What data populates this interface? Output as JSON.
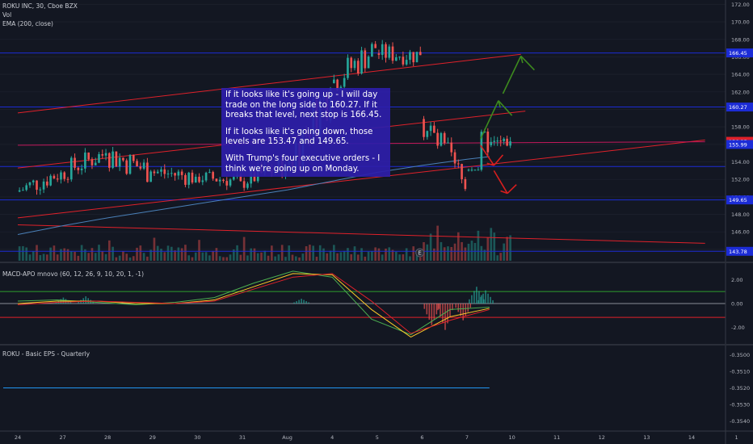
{
  "legend": {
    "symbol": "ROKU INC, 30, Cboe BZX",
    "vol": "Vol",
    "ema": "EMA (200, close)",
    "macd": "MACD-APO mnovo (60, 12, 26, 9, 10, 20, 1, -1)",
    "eps": "ROKU - Basic EPS - Quarterly"
  },
  "note": {
    "p1": "If it looks like it's going up - I will day trade on the long side to 160.27. If it breaks that level, next stop is 166.45.",
    "p2": "If it looks like it's going down, those levels are 153.47 and 149.65.",
    "p3": "With Trump's four executive orders - I think we're going up on Monday."
  },
  "earnings_marker": "E",
  "colors": {
    "background": "#131722",
    "up": "#26a69a",
    "down": "#ef5350",
    "level_line": "#1c2cd6",
    "trend_line": "#e0212a",
    "ema": "#4a80b8",
    "arrow_up": "#3d8a1e",
    "arrow_down": "#d81e1e",
    "note_bg": "#2e1eaa",
    "axis_text": "#b2b5be"
  },
  "chart_data": [
    {
      "type": "candlestick",
      "title": "ROKU INC, 30, Cboe BZX",
      "ylim": [
        142.7,
        172.5
      ],
      "y_ticks": [
        "172.00",
        "170.00",
        "168.00",
        "166.00",
        "164.00",
        "162.00",
        "160.00",
        "158.00",
        "156.00",
        "154.00",
        "152.00",
        "150.00",
        "148.00",
        "146.00",
        "144.00"
      ],
      "x_ticks": [
        "24",
        "27",
        "28",
        "29",
        "30",
        "31",
        "Aug",
        "4",
        "5",
        "6",
        "7",
        "10",
        "11",
        "12",
        "13",
        "14",
        "1"
      ],
      "price_labels": [
        {
          "text": "166.45",
          "value": 166.45,
          "kind": "level"
        },
        {
          "text": "160.27",
          "value": 160.27,
          "kind": "level"
        },
        {
          "text": "156.35",
          "value": 156.35,
          "kind": "last"
        },
        {
          "text": "155.99",
          "value": 155.99,
          "kind": "level"
        },
        {
          "text": "149.65",
          "value": 149.65,
          "kind": "level"
        },
        {
          "text": "143.78",
          "value": 143.78,
          "kind": "level"
        }
      ],
      "horizontal_levels": [
        166.45,
        160.27,
        155.99,
        153.47,
        149.65,
        143.78
      ],
      "trendlines": [
        {
          "name": "upper channel",
          "start": {
            "day": 0,
            "price": 159.6
          },
          "end": {
            "day": 11.2,
            "price": 166.3
          }
        },
        {
          "name": "mid channel",
          "start": {
            "day": 0,
            "price": 153.3
          },
          "end": {
            "day": 11.3,
            "price": 159.8
          }
        },
        {
          "name": "lower channel",
          "start": {
            "day": 0,
            "price": 147.6
          },
          "end": {
            "day": 15.3,
            "price": 156.5
          }
        },
        {
          "name": "lower support",
          "start": {
            "day": 0,
            "price": 146.8
          },
          "end": {
            "day": 15.3,
            "price": 144.7
          }
        },
        {
          "name": "pink line",
          "start": {
            "day": 0,
            "price": 155.9
          },
          "end": {
            "day": 15.3,
            "price": 156.3
          }
        }
      ],
      "arrows": [
        {
          "dir": "up",
          "path": [
            {
              "day": 10.3,
              "price": 156.6
            },
            {
              "day": 10.7,
              "price": 161.0
            },
            {
              "day": 11.0,
              "price": 159.3
            }
          ]
        },
        {
          "dir": "up",
          "path": [
            {
              "day": 10.8,
              "price": 161.8
            },
            {
              "day": 11.2,
              "price": 166.1
            },
            {
              "day": 11.5,
              "price": 164.5
            }
          ]
        },
        {
          "dir": "down",
          "path": [
            {
              "day": 10.3,
              "price": 155.9
            },
            {
              "day": 10.6,
              "price": 153.6
            },
            {
              "day": 10.8,
              "price": 154.8
            }
          ]
        },
        {
          "dir": "down",
          "path": [
            {
              "day": 10.6,
              "price": 153.0
            },
            {
              "day": 10.9,
              "price": 150.4
            },
            {
              "day": 11.1,
              "price": 151.4
            }
          ]
        }
      ],
      "ohlc_days": [
        {
          "label": "24",
          "day": 0,
          "open": 150.6,
          "close": 152.8,
          "low": 149.5,
          "high": 154.0
        },
        {
          "label": "27",
          "day": 1,
          "open": 152.8,
          "close": 155.0,
          "low": 151.3,
          "high": 155.9
        },
        {
          "label": "28",
          "day": 2,
          "open": 155.0,
          "close": 152.9,
          "low": 150.8,
          "high": 156.6
        },
        {
          "label": "29",
          "day": 3,
          "open": 152.9,
          "close": 152.3,
          "low": 149.9,
          "high": 154.2
        },
        {
          "label": "30",
          "day": 4,
          "open": 152.3,
          "close": 151.8,
          "low": 150.4,
          "high": 153.6
        },
        {
          "label": "31",
          "day": 5,
          "open": 151.8,
          "close": 153.6,
          "low": 150.4,
          "high": 154.9
        },
        {
          "label": "Aug",
          "day": 6,
          "open": 153.6,
          "close": 162.4,
          "low": 152.4,
          "high": 163.6
        },
        {
          "label": "4",
          "day": 7,
          "open": 163.0,
          "close": 167.0,
          "low": 162.0,
          "high": 168.3
        },
        {
          "label": "5",
          "day": 8,
          "open": 166.4,
          "close": 166.2,
          "low": 164.9,
          "high": 169.1
        },
        {
          "label": "6",
          "day": 9,
          "open": 158.9,
          "close": 150.9,
          "low": 150.0,
          "high": 159.6
        },
        {
          "label": "7",
          "day": 10,
          "open": 153.0,
          "close": 155.1,
          "low": 152.9,
          "high": 164.7
        },
        {
          "label": "7 close",
          "day": 10.5,
          "open": 155.9,
          "close": 156.35,
          "low": 154.3,
          "high": 157.0
        }
      ],
      "ema200": [
        {
          "day": 0,
          "value": 145.7
        },
        {
          "day": 1,
          "value": 146.7
        },
        {
          "day": 2,
          "value": 147.6
        },
        {
          "day": 3,
          "value": 148.4
        },
        {
          "day": 4,
          "value": 149.2
        },
        {
          "day": 5,
          "value": 150.0
        },
        {
          "day": 6,
          "value": 150.8
        },
        {
          "day": 7,
          "value": 151.8
        },
        {
          "day": 8,
          "value": 152.8
        },
        {
          "day": 9,
          "value": 153.6
        },
        {
          "day": 10,
          "value": 154.3
        },
        {
          "day": 10.5,
          "value": 154.6
        }
      ]
    },
    {
      "type": "line",
      "title": "MACD-APO mnovo (60, 12, 26, 9, 10, 20, 1, -1)",
      "ylim": [
        -3.3,
        3.3
      ],
      "y_ticks": [
        "2.00",
        "0.00",
        "-2.00"
      ],
      "levels": [
        1.0,
        0.0,
        -1.15
      ],
      "series": [
        {
          "points": [
            0.2,
            0.3,
            0.1,
            -0.1,
            0.1,
            0.5,
            1.7,
            2.7,
            2.2,
            -1.3,
            -2.6,
            -0.5,
            -0.3
          ]
        },
        {
          "points": [
            0.0,
            0.2,
            0.2,
            0.0,
            0.0,
            0.3,
            1.4,
            2.5,
            2.4,
            -0.5,
            -2.8,
            -1.1,
            -0.4
          ]
        },
        {
          "points": [
            -0.1,
            0.1,
            0.2,
            0.1,
            0.0,
            0.2,
            1.2,
            2.2,
            2.5,
            0.2,
            -2.5,
            -1.4,
            -0.5
          ]
        }
      ],
      "histogram": [
        {
          "day": 1,
          "value": 0.5
        },
        {
          "day": 1.5,
          "value": 0.6
        },
        {
          "day": 6.3,
          "value": 0.4
        },
        {
          "day": 9.2,
          "value": -1.8
        },
        {
          "day": 9.5,
          "value": -2.2
        },
        {
          "day": 9.9,
          "value": -1.4
        },
        {
          "day": 10.2,
          "value": 1.4
        },
        {
          "day": 10.4,
          "value": 1.1
        }
      ]
    },
    {
      "type": "line",
      "title": "ROKU - Basic EPS - Quarterly",
      "ylim": [
        -0.3545,
        -0.3495
      ],
      "y_ticks": [
        "-0.3540",
        "-0.3530",
        "-0.3520",
        "-0.3510",
        "-0.3500"
      ],
      "series": [
        {
          "points": [
            {
              "day": 0,
              "value": -0.352
            },
            {
              "day": 10.5,
              "value": -0.352
            }
          ]
        }
      ]
    }
  ]
}
